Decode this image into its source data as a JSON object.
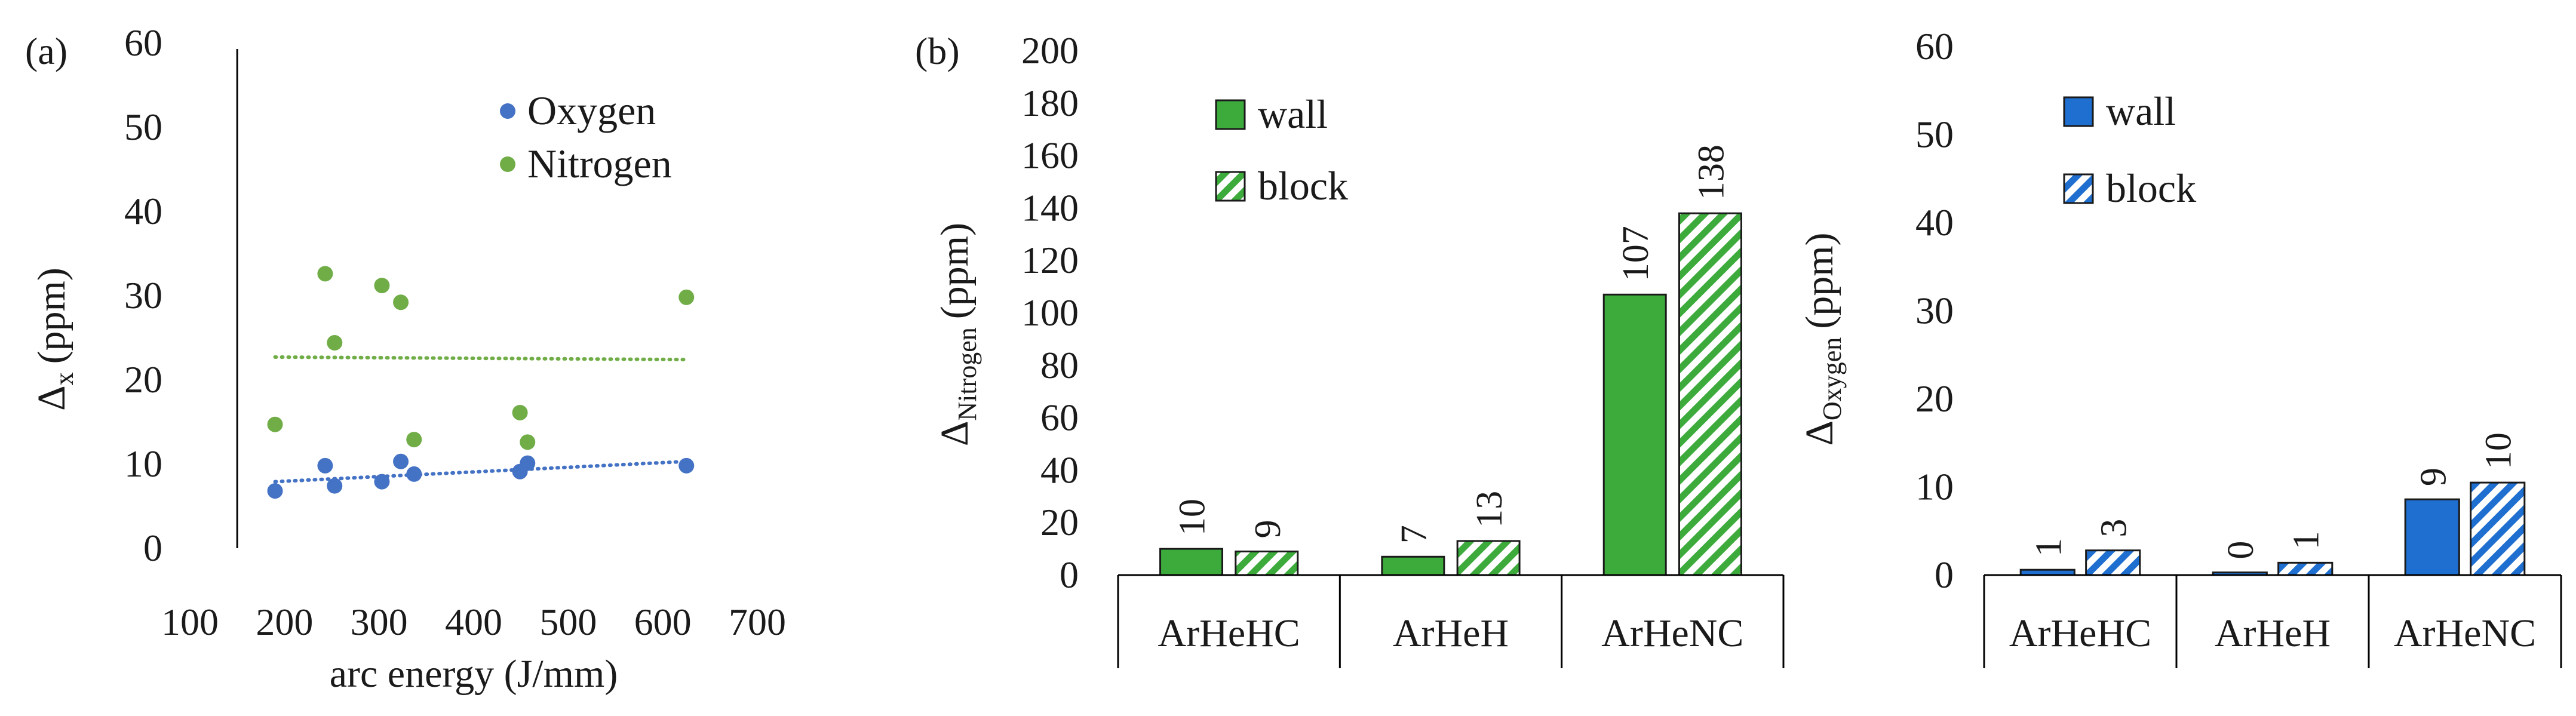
{
  "chart_data": [
    {
      "type": "scatter",
      "panel_label": "(a)",
      "xlabel": "arc energy (J/mm)",
      "ylabel": "Δ",
      "ylabel_sub": "x",
      "ylabel_unit": "(ppm)",
      "xlim": [
        100,
        700
      ],
      "ylim": [
        0,
        60
      ],
      "xticks": [
        100,
        200,
        300,
        400,
        500,
        600,
        700
      ],
      "yticks": [
        0,
        10,
        20,
        30,
        40,
        50,
        60
      ],
      "grid": false,
      "legend_position": "top-right",
      "series": [
        {
          "name": "Oxygen",
          "color": "#4472c4",
          "points": [
            [
              190,
              6.8
            ],
            [
              243,
              9.8
            ],
            [
              253,
              7.4
            ],
            [
              303,
              7.9
            ],
            [
              323,
              10.3
            ],
            [
              337,
              8.8
            ],
            [
              449,
              9.1
            ],
            [
              457,
              10.1
            ],
            [
              625,
              9.8
            ]
          ],
          "trendline": [
            [
              190,
              7.9
            ],
            [
              625,
              10.3
            ]
          ]
        },
        {
          "name": "Nitrogen",
          "color": "#70ad47",
          "points": [
            [
              190,
              14.7
            ],
            [
              243,
              32.6
            ],
            [
              253,
              24.4
            ],
            [
              303,
              31.2
            ],
            [
              323,
              29.2
            ],
            [
              337,
              12.9
            ],
            [
              449,
              16.1
            ],
            [
              457,
              12.6
            ],
            [
              625,
              29.8
            ]
          ],
          "trendline": [
            [
              190,
              22.7
            ],
            [
              625,
              22.4
            ]
          ]
        }
      ]
    },
    {
      "type": "bar",
      "panel_label": "(b)",
      "ylabel": "Δ",
      "ylabel_sub": "Nitrogen",
      "ylabel_unit": "(ppm)",
      "ylim": [
        0,
        200
      ],
      "yticks": [
        0,
        20,
        40,
        60,
        80,
        100,
        120,
        140,
        160,
        180,
        200
      ],
      "categories": [
        "ArHeHC",
        "ArHeH",
        "ArHeNC"
      ],
      "color": "#3cab3c",
      "legend_position": "top-left",
      "series": [
        {
          "name": "wall",
          "pattern": "solid",
          "values": [
            10,
            7,
            107
          ]
        },
        {
          "name": "block",
          "pattern": "hatched",
          "values": [
            9,
            13,
            138
          ]
        }
      ]
    },
    {
      "type": "bar",
      "panel_label": "",
      "ylabel": "Δ",
      "ylabel_sub": "Oxygen",
      "ylabel_unit": "(ppm)",
      "ylim": [
        0,
        60
      ],
      "yticks": [
        0,
        10,
        20,
        30,
        40,
        50,
        60
      ],
      "categories": [
        "ArHeHC",
        "ArHeH",
        "ArHeNC"
      ],
      "color": "#1f6fd0",
      "legend_position": "top-left",
      "series": [
        {
          "name": "wall",
          "pattern": "solid",
          "values": [
            1,
            0,
            9
          ],
          "plotted": [
            0.6,
            0.3,
            8.6
          ]
        },
        {
          "name": "block",
          "pattern": "hatched",
          "values": [
            3,
            1,
            10
          ],
          "plotted": [
            2.8,
            1.4,
            10.5
          ]
        }
      ]
    }
  ]
}
